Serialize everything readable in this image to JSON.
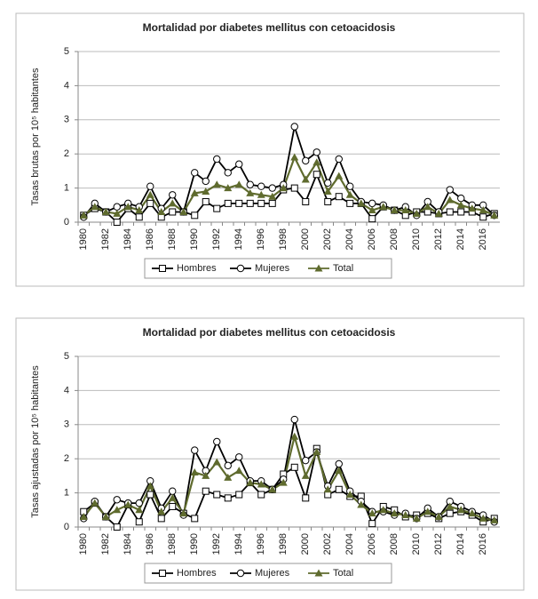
{
  "chart_data": [
    {
      "type": "line",
      "title": "Mortalidad por diabetes mellitus con cetoacidosis",
      "y_label": "Tasas brutas por 10⁵ habitantes",
      "categories": [
        "1980",
        null,
        "1982",
        null,
        "1984",
        null,
        "1986",
        null,
        "1988",
        null,
        "1990",
        null,
        "1992",
        null,
        "1994",
        null,
        "1996",
        null,
        "1998",
        null,
        "2000",
        null,
        "2002",
        null,
        "2004",
        null,
        "2006",
        null,
        "2008",
        null,
        "2010",
        null,
        "2012",
        null,
        "2014",
        null,
        "2016",
        null
      ],
      "ylim": [
        0,
        5
      ],
      "yticks": [
        0,
        1,
        2,
        3,
        4,
        5
      ],
      "legend": "bottom",
      "series": [
        {
          "name": "Hombres",
          "color": "#000000",
          "marker": "square",
          "values": [
            0.2,
            0.4,
            0.3,
            0,
            0.4,
            0.15,
            0.55,
            0.15,
            0.3,
            0.3,
            0.2,
            0.6,
            0.4,
            0.55,
            0.55,
            0.55,
            0.55,
            0.55,
            0.95,
            1.0,
            0.6,
            1.4,
            0.6,
            0.75,
            0.55,
            0.55,
            0.1,
            0.45,
            0.35,
            0.2,
            0.3,
            0.3,
            0.25,
            0.3,
            0.3,
            0.3,
            0.15,
            0.25
          ]
        },
        {
          "name": "Mujeres",
          "color": "#000000",
          "marker": "circle",
          "values": [
            0.15,
            0.55,
            0.3,
            0.45,
            0.55,
            0.45,
            1.05,
            0.4,
            0.8,
            0.3,
            1.45,
            1.2,
            1.85,
            1.45,
            1.7,
            1.1,
            1.05,
            1.0,
            1.1,
            2.8,
            1.8,
            2.05,
            1.15,
            1.85,
            1.05,
            0.6,
            0.55,
            0.5,
            0.35,
            0.45,
            0.2,
            0.6,
            0.3,
            0.95,
            0.7,
            0.5,
            0.5,
            0.2
          ]
        },
        {
          "name": "Total",
          "color": "#5f6b2e",
          "marker": "triangle",
          "values": [
            0.2,
            0.45,
            0.3,
            0.25,
            0.45,
            0.35,
            0.8,
            0.3,
            0.55,
            0.3,
            0.85,
            0.9,
            1.1,
            1.0,
            1.1,
            0.85,
            0.8,
            0.75,
            1.0,
            1.9,
            1.25,
            1.75,
            0.9,
            1.35,
            0.8,
            0.55,
            0.35,
            0.45,
            0.35,
            0.35,
            0.25,
            0.45,
            0.25,
            0.65,
            0.5,
            0.4,
            0.35,
            0.2
          ]
        }
      ]
    },
    {
      "type": "line",
      "title": "Mortalidad por diabetes mellitus con cetoacidosis",
      "y_label": "Tasas ajustadas por 10⁵ habitantes",
      "categories": [
        "1980",
        null,
        "1982",
        null,
        "1984",
        null,
        "1986",
        null,
        "1988",
        null,
        "1990",
        null,
        "1992",
        null,
        "1994",
        null,
        "1996",
        null,
        "1998",
        null,
        "2000",
        null,
        "2002",
        null,
        "2004",
        null,
        "2006",
        null,
        "2008",
        null,
        "2010",
        null,
        "2012",
        null,
        "2014",
        null,
        "2016",
        null
      ],
      "ylim": [
        0,
        5
      ],
      "yticks": [
        0,
        1,
        2,
        3,
        4,
        5
      ],
      "legend": "bottom",
      "series": [
        {
          "name": "Hombres",
          "color": "#000000",
          "marker": "square",
          "values": [
            0.45,
            0.7,
            0.3,
            0,
            0.65,
            0.15,
            0.95,
            0.25,
            0.6,
            0.4,
            0.25,
            1.05,
            0.95,
            0.85,
            0.95,
            1.3,
            0.95,
            1.1,
            1.55,
            1.75,
            0.85,
            2.3,
            0.95,
            1.1,
            0.9,
            0.9,
            0.1,
            0.6,
            0.5,
            0.3,
            0.35,
            0.4,
            0.25,
            0.4,
            0.45,
            0.35,
            0.15,
            0.25
          ]
        },
        {
          "name": "Mujeres",
          "color": "#000000",
          "marker": "circle",
          "values": [
            0.25,
            0.75,
            0.3,
            0.8,
            0.7,
            0.7,
            1.35,
            0.55,
            1.05,
            0.35,
            2.25,
            1.65,
            2.5,
            1.8,
            2.05,
            1.35,
            1.35,
            1.1,
            1.4,
            3.15,
            1.95,
            2.2,
            1.2,
            1.85,
            1.05,
            0.75,
            0.45,
            0.45,
            0.35,
            0.4,
            0.25,
            0.55,
            0.3,
            0.75,
            0.6,
            0.45,
            0.35,
            0.15
          ]
        },
        {
          "name": "Total",
          "color": "#5f6b2e",
          "marker": "triangle",
          "values": [
            0.3,
            0.7,
            0.3,
            0.5,
            0.65,
            0.5,
            1.2,
            0.45,
            0.85,
            0.4,
            1.6,
            1.5,
            1.9,
            1.45,
            1.65,
            1.3,
            1.25,
            1.1,
            1.3,
            2.65,
            1.5,
            2.2,
            1.1,
            1.65,
            0.95,
            0.65,
            0.4,
            0.5,
            0.4,
            0.35,
            0.25,
            0.45,
            0.3,
            0.6,
            0.5,
            0.4,
            0.25,
            0.2
          ]
        }
      ]
    }
  ]
}
